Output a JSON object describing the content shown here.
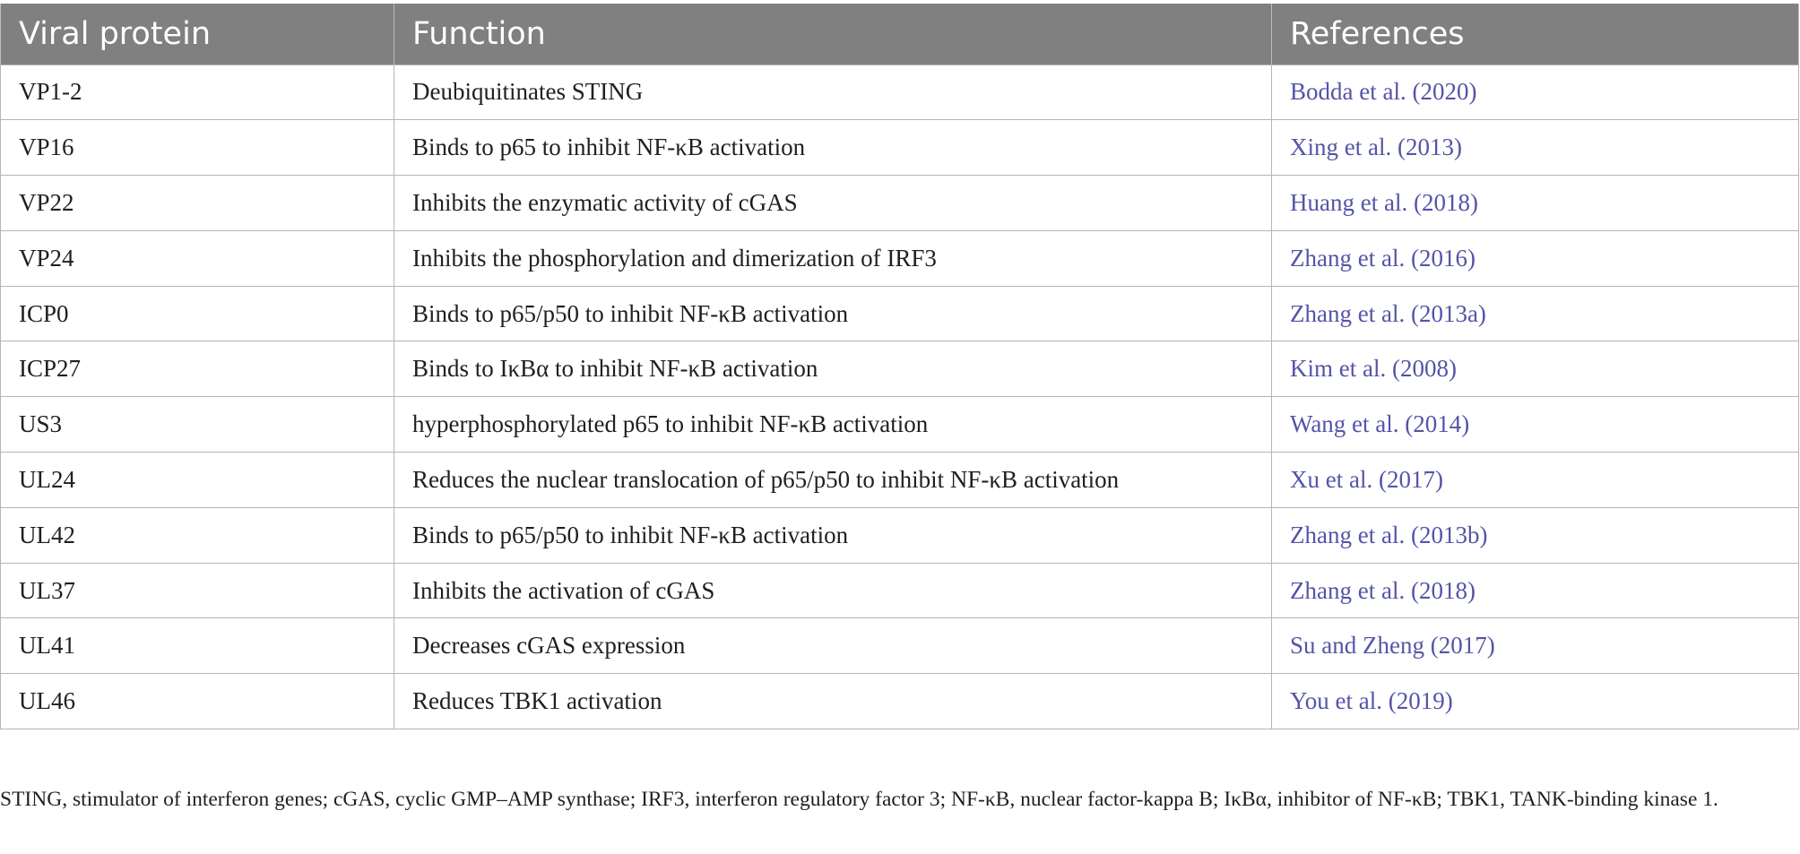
{
  "table": {
    "headers": [
      "Viral protein",
      "Function",
      "References"
    ],
    "rows": [
      {
        "protein": "VP1-2",
        "function": "Deubiquitinates STING",
        "reference": "Bodda et al. (2020)"
      },
      {
        "protein": "VP16",
        "function": "Binds to p65 to inhibit NF-κB activation",
        "reference": "Xing et al. (2013)"
      },
      {
        "protein": "VP22",
        "function": "Inhibits the enzymatic activity of cGAS",
        "reference": "Huang et al. (2018)"
      },
      {
        "protein": "VP24",
        "function": "Inhibits the phosphorylation and dimerization of IRF3",
        "reference": "Zhang et al. (2016)"
      },
      {
        "protein": "ICP0",
        "function": "Binds to p65/p50 to inhibit NF-κB activation",
        "reference": "Zhang et al. (2013a)"
      },
      {
        "protein": "ICP27",
        "function": "Binds to IκBα to inhibit NF-κB activation",
        "reference": "Kim et al. (2008)"
      },
      {
        "protein": "US3",
        "function": "hyperphosphorylated p65 to inhibit NF-κB activation",
        "reference": "Wang et al. (2014)"
      },
      {
        "protein": "UL24",
        "function": "Reduces the nuclear translocation of p65/p50 to inhibit NF-κB activation",
        "reference": "Xu et al. (2017)"
      },
      {
        "protein": "UL42",
        "function": "Binds to p65/p50 to inhibit NF-κB activation",
        "reference": "Zhang et al. (2013b)"
      },
      {
        "protein": "UL37",
        "function": "Inhibits the activation of cGAS",
        "reference": "Zhang et al. (2018)"
      },
      {
        "protein": "UL41",
        "function": "Decreases cGAS expression",
        "reference": "Su and Zheng (2017)"
      },
      {
        "protein": "UL46",
        "function": "Reduces TBK1 activation",
        "reference": "You et al. (2019)"
      }
    ]
  },
  "footnote": "STING, stimulator of interferon genes; cGAS, cyclic GMP–AMP synthase; IRF3, interferon regulatory factor 3; NF-κB, nuclear factor-kappa B; IκBα, inhibitor of NF-κB; TBK1, TANK-binding kinase 1.",
  "colors": {
    "header_bg": "#808080",
    "header_text": "#ffffff",
    "body_text": "#1f1f1f",
    "reference_link": "#5454a8",
    "grid": "#b5b5b5"
  }
}
